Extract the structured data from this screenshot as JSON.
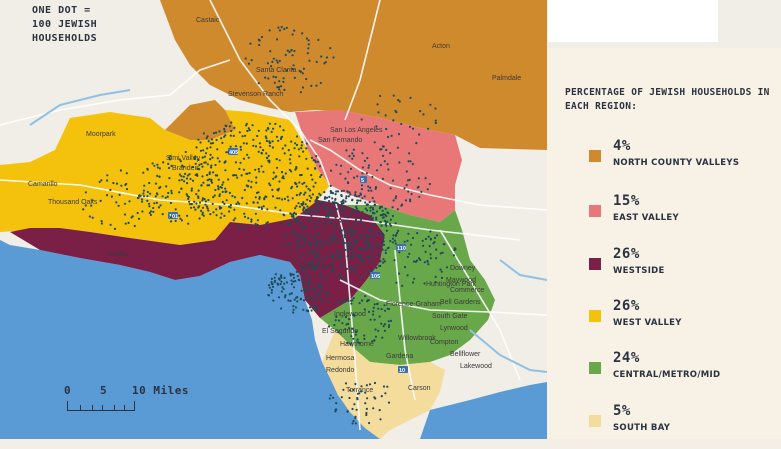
{
  "note": {
    "text": "ONE DOT =\n100 JEWISH\nHOUSEHOLDS"
  },
  "scale": {
    "ticks": [
      "0",
      "5",
      "10 Miles"
    ]
  },
  "legend": {
    "title": "PERCENTAGE OF JEWISH HOUSEHOLDS IN EACH REGION:",
    "items": [
      {
        "pct": "4%",
        "name": "NORTH COUNTY VALLEYS",
        "color": "#d08a2e"
      },
      {
        "pct": "15%",
        "name": "EAST VALLEY",
        "color": "#e87878"
      },
      {
        "pct": "26%",
        "name": "WESTSIDE",
        "color": "#7a2047"
      },
      {
        "pct": "26%",
        "name": "WEST VALLEY",
        "color": "#f4c20d"
      },
      {
        "pct": "24%",
        "name": "CENTRAL/METRO/MID",
        "color": "#69a84a"
      },
      {
        "pct": "5%",
        "name": "SOUTH BAY",
        "color": "#f3dc9c"
      }
    ]
  },
  "places": [
    "Castaic",
    "Acton",
    "Santa Clarita",
    "Stevenson Ranch",
    "Palmdale",
    "Moorpark",
    "San Fernando",
    "San Los Angeles",
    "Simi Valley",
    "Brandeis",
    "Camarillo",
    "Thousand Oaks",
    "Malibu",
    "Culver City",
    "Huntington Park",
    "South Gate",
    "Lynwood",
    "Compton",
    "Carson",
    "Torrance",
    "Redondo",
    "El Segundo",
    "Hawthorne",
    "Inglewood",
    "Bell Gardens",
    "Downey",
    "Bellflower",
    "Lakewood",
    "Florence-Graham",
    "Commerce",
    "Maywood",
    "Willowbrook",
    "Gardena",
    "Hermosa"
  ],
  "highways": [
    "405",
    "101",
    "110",
    "5",
    "105",
    "10"
  ],
  "colors": {
    "ocean": "#5a9bd5",
    "land": "#f2efe9",
    "dot": "#1f4a5a"
  }
}
